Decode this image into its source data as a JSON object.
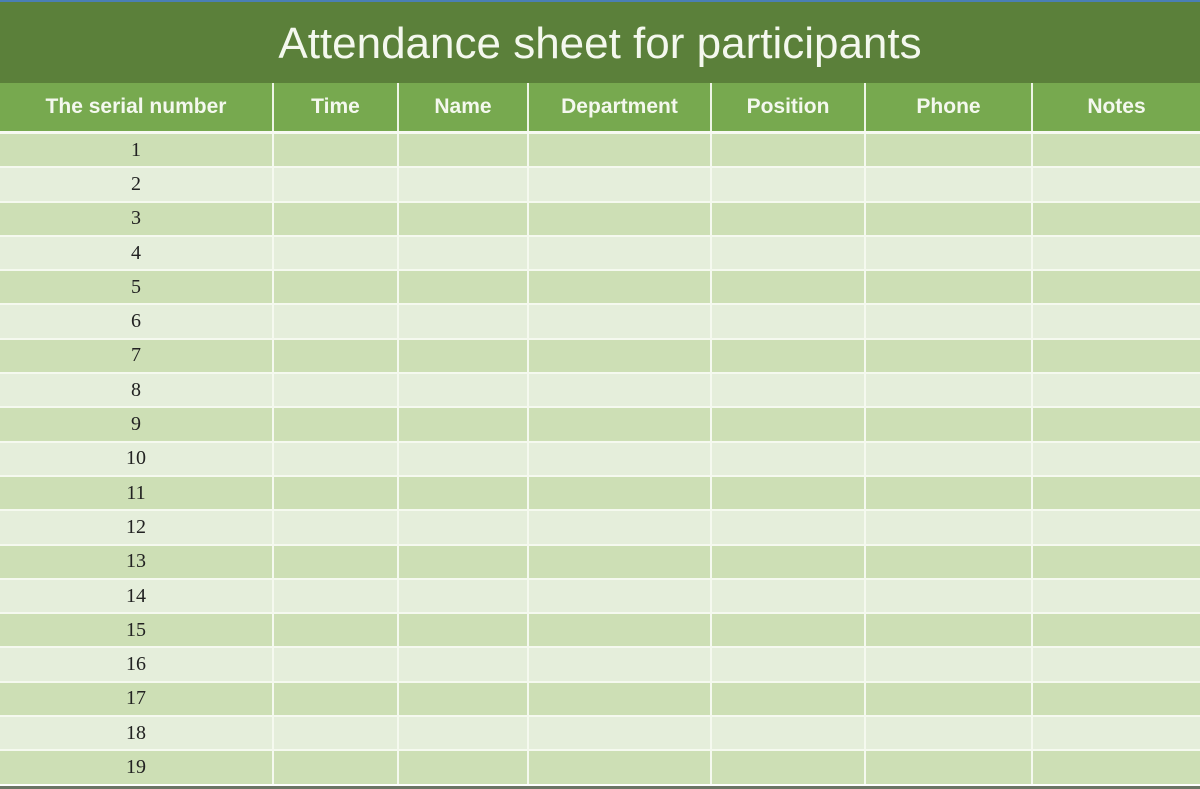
{
  "title": "Attendance sheet for participants",
  "columns": [
    "The serial number",
    "Time",
    "Name",
    "Department",
    "Position",
    "Phone",
    "Notes"
  ],
  "rows": [
    "1",
    "2",
    "3",
    "4",
    "5",
    "6",
    "7",
    "8",
    "9",
    "10",
    "11",
    "12",
    "13",
    "14",
    "15",
    "16",
    "17",
    "18",
    "19"
  ],
  "colors": {
    "title_bg": "#5b803a",
    "header_bg": "#77a94f",
    "row_dark": "#cddfb5",
    "row_light": "#e5eedb"
  }
}
